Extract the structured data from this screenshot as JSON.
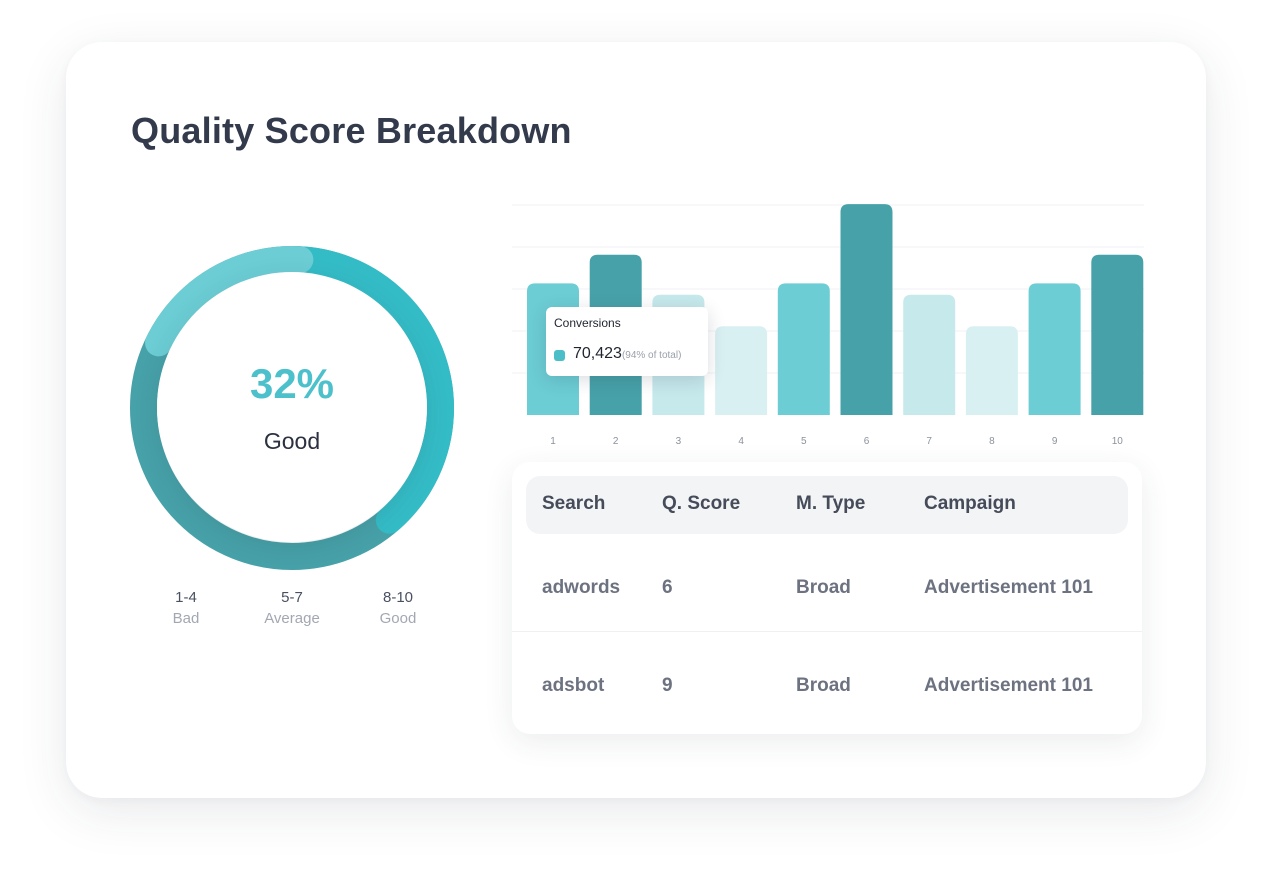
{
  "title": "Quality Score Breakdown",
  "score": {
    "percent": "32%",
    "label": "Good"
  },
  "donut": {
    "colors": {
      "track_dark": "#47a1a8",
      "bright": "#34bcc6",
      "light": "#6ccdd4"
    }
  },
  "legend": [
    {
      "range": "1-4",
      "name": "Bad"
    },
    {
      "range": "5-7",
      "name": "Average"
    },
    {
      "range": "8-10",
      "name": "Good"
    }
  ],
  "chart_data": {
    "type": "bar",
    "categories": [
      "1",
      "2",
      "3",
      "4",
      "5",
      "6",
      "7",
      "8",
      "9",
      "10"
    ],
    "values": [
      138,
      168,
      126,
      93,
      138,
      221,
      126,
      93,
      138,
      168
    ],
    "ylim": [
      0,
      240
    ],
    "grid": true,
    "bar_colors": [
      "#6ccdd4",
      "#47a1a8",
      "#c6e9ec",
      "#d9f0f2",
      "#6ccdd4",
      "#47a1a8",
      "#c6e9ec",
      "#d9f0f2",
      "#6ccdd4",
      "#47a1a8"
    ]
  },
  "tooltip": {
    "title": "Conversions",
    "value": "70,423",
    "note": "(94% of total)",
    "color": "#4bbec8"
  },
  "table": {
    "headers": [
      "Search",
      "Q. Score",
      "M. Type",
      "Campaign"
    ],
    "rows": [
      [
        "adwords",
        "6",
        "Broad",
        "Advertisement 101"
      ],
      [
        "adsbot",
        "9",
        "Broad",
        "Advertisement 101"
      ]
    ]
  }
}
